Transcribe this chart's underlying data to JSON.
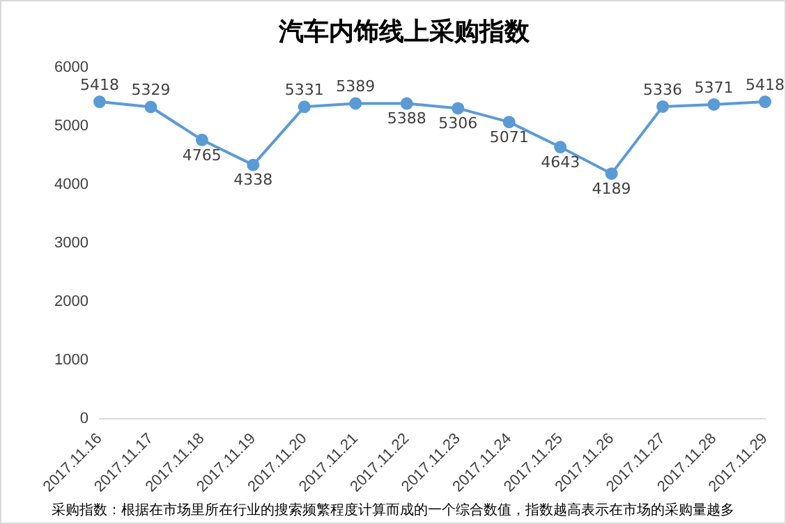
{
  "chart_data": {
    "type": "line",
    "title": "汽车内饰线上采购指数",
    "categories": [
      "2017.11.16",
      "2017.11.17",
      "2017.11.18",
      "2017.11.19",
      "2017.11.20",
      "2017.11.21",
      "2017.11.22",
      "2017.11.23",
      "2017.11.24",
      "2017.11.25",
      "2017.11.26",
      "2017.11.27",
      "2017.11.28",
      "2017.11.29"
    ],
    "series": [
      {
        "color": "#5b9bd5",
        "values": [
          5418,
          5329,
          4765,
          4338,
          5331,
          5389,
          5388,
          5306,
          5071,
          4643,
          4189,
          5336,
          5371,
          5418
        ]
      }
    ],
    "ylim": [
      0,
      6000
    ],
    "yticks": [
      0,
      1000,
      2000,
      3000,
      4000,
      5000,
      6000
    ],
    "data_labels": true,
    "marker": "circle",
    "grid": false,
    "legend": false,
    "annotations": [
      "采购指数：根据在市场里所在行业的搜索频繁程度计算而成的一个综合数值，指数越高表示在市场的采购量越多"
    ]
  }
}
